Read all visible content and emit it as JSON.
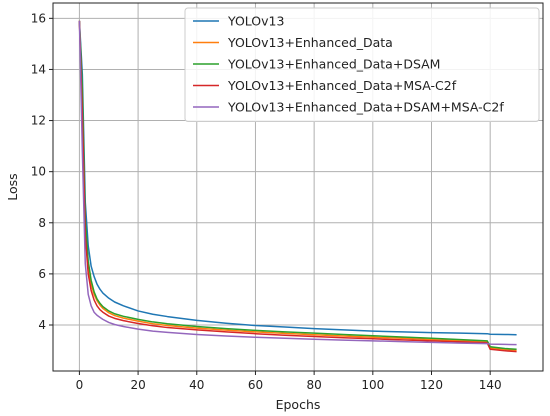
{
  "chart_data": {
    "type": "line",
    "title": "",
    "xlabel": "Epochs",
    "ylabel": "Loss",
    "xlim": [
      -9,
      158
    ],
    "ylim": [
      2.2,
      16.6
    ],
    "xticks": [
      0,
      20,
      40,
      60,
      80,
      100,
      120,
      140
    ],
    "yticks": [
      4,
      6,
      8,
      10,
      12,
      14,
      16
    ],
    "grid": true,
    "legend": "top-right",
    "series": [
      {
        "name": "YOLOv13",
        "color": "#1f77b4",
        "x": [
          0,
          1,
          2,
          3,
          4,
          5,
          6,
          7,
          8,
          10,
          12,
          15,
          20,
          25,
          30,
          40,
          50,
          60,
          70,
          80,
          90,
          100,
          110,
          120,
          130,
          139,
          140,
          145,
          149
        ],
        "y": [
          15.9,
          13.8,
          8.8,
          7.1,
          6.3,
          5.9,
          5.6,
          5.4,
          5.25,
          5.05,
          4.9,
          4.75,
          4.55,
          4.42,
          4.33,
          4.18,
          4.07,
          3.98,
          3.92,
          3.86,
          3.81,
          3.76,
          3.73,
          3.7,
          3.68,
          3.66,
          3.64,
          3.63,
          3.62
        ]
      },
      {
        "name": "YOLOv13+Enhanced_Data",
        "color": "#ff7f0e",
        "x": [
          0,
          1,
          2,
          3,
          4,
          5,
          6,
          7,
          8,
          10,
          12,
          15,
          20,
          25,
          30,
          40,
          50,
          60,
          70,
          80,
          90,
          100,
          110,
          120,
          130,
          139,
          140,
          145,
          149
        ],
        "y": [
          15.9,
          12.8,
          7.8,
          6.3,
          5.6,
          5.2,
          4.95,
          4.78,
          4.65,
          4.48,
          4.37,
          4.27,
          4.15,
          4.05,
          3.98,
          3.88,
          3.8,
          3.73,
          3.67,
          3.62,
          3.57,
          3.52,
          3.48,
          3.43,
          3.38,
          3.33,
          3.1,
          3.04,
          3.01
        ]
      },
      {
        "name": "YOLOv13+Enhanced_Data+DSAM",
        "color": "#2ca02c",
        "x": [
          0,
          1,
          2,
          3,
          4,
          5,
          6,
          7,
          8,
          10,
          12,
          15,
          20,
          25,
          30,
          40,
          50,
          60,
          70,
          80,
          90,
          100,
          110,
          120,
          130,
          139,
          140,
          145,
          149
        ],
        "y": [
          15.9,
          13.2,
          8.1,
          6.5,
          5.75,
          5.3,
          5.02,
          4.85,
          4.72,
          4.55,
          4.44,
          4.34,
          4.22,
          4.12,
          4.05,
          3.94,
          3.86,
          3.79,
          3.73,
          3.68,
          3.63,
          3.58,
          3.53,
          3.48,
          3.43,
          3.38,
          3.15,
          3.08,
          3.05
        ]
      },
      {
        "name": "YOLOv13+Enhanced_Data+MSA-C2f",
        "color": "#d62728",
        "x": [
          0,
          1,
          2,
          3,
          4,
          5,
          6,
          7,
          8,
          10,
          12,
          15,
          20,
          25,
          30,
          40,
          50,
          60,
          70,
          80,
          90,
          100,
          110,
          120,
          130,
          139,
          140,
          145,
          149
        ],
        "y": [
          15.9,
          12.2,
          7.5,
          6.0,
          5.35,
          4.98,
          4.75,
          4.6,
          4.5,
          4.35,
          4.26,
          4.17,
          4.06,
          3.97,
          3.9,
          3.81,
          3.73,
          3.66,
          3.6,
          3.55,
          3.5,
          3.46,
          3.42,
          3.38,
          3.34,
          3.3,
          3.05,
          2.99,
          2.96
        ]
      },
      {
        "name": "YOLOv13+Enhanced_Data+DSAM+MSA-C2f",
        "color": "#9467bd",
        "x": [
          0,
          1,
          2,
          3,
          4,
          5,
          6,
          7,
          8,
          10,
          12,
          15,
          20,
          25,
          30,
          40,
          50,
          60,
          70,
          80,
          90,
          100,
          110,
          120,
          130,
          139,
          140,
          145,
          149
        ],
        "y": [
          15.9,
          10.8,
          6.4,
          5.2,
          4.75,
          4.5,
          4.38,
          4.3,
          4.22,
          4.1,
          4.02,
          3.94,
          3.84,
          3.76,
          3.71,
          3.63,
          3.57,
          3.52,
          3.48,
          3.44,
          3.41,
          3.38,
          3.35,
          3.32,
          3.29,
          3.27,
          3.25,
          3.24,
          3.23
        ]
      }
    ]
  }
}
